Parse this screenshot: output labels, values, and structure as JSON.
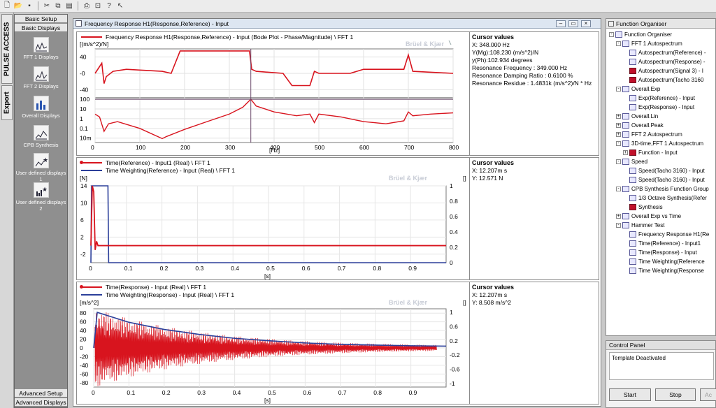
{
  "toolbar": {
    "icons": [
      "new-icon",
      "open-icon",
      "save-icon",
      "cut-icon",
      "copy-icon",
      "paste-icon",
      "print-icon",
      "print-preview-icon",
      "help-icon",
      "context-help-icon"
    ]
  },
  "vtabs": {
    "pulse": "PULSE ACCESS",
    "export": "Export"
  },
  "left": {
    "basic_setup": "Basic Setup",
    "basic_displays": "Basic Displays",
    "items": [
      {
        "label": "FFT 1 Displays",
        "icon": "fft-display-icon"
      },
      {
        "label": "FFT 2 Displays",
        "icon": "fft-display-icon"
      },
      {
        "label": "Overall Displays",
        "icon": "bar-chart-icon"
      },
      {
        "label": "CPB Synthesis",
        "icon": "cpb-icon"
      },
      {
        "label": "User defined displays 1",
        "icon": "star-chart-icon"
      },
      {
        "label": "User defined displays 2",
        "icon": "star-bars-icon"
      }
    ],
    "advanced_setup": "Advanced Setup",
    "advanced_displays": "Advanced Displays"
  },
  "window": {
    "title": "Frequency Response H1(Response,Reference) - Input"
  },
  "panel1": {
    "legend": "Frequency Response H1(Response,Reference) - Input (Bode Plot - Phase/Magnitude) \\ FFT 1",
    "unit": "[(m/s^2)/N]",
    "watermark": "Brüel & Kjær",
    "xunit": "[Hz]",
    "cursor_title": "Cursor values",
    "cursor": [
      "X: 348.000 Hz",
      "Y(Mg):108.230 (m/s^2)/N",
      "y(Ph):102.934 degrees",
      "Resonance Frequency : 349.000 Hz",
      "Resonance Damping Ratio : 0.6100 %",
      "Resonance Residue : 1.4831k (m/s^2)/N * Hz"
    ]
  },
  "panel2": {
    "legend1": "Time(Reference) - Input1 (Real) \\ FFT 1",
    "legend2": "Time Weighting(Reference) - Input (Real) \\ FFT 1",
    "unit": "[N]",
    "runit": "[]",
    "watermark": "Brüel & Kjær",
    "xunit": "[s]",
    "cursor_title": "Cursor values",
    "cursor": [
      "X: 12.207m s",
      "Y: 12.571 N"
    ]
  },
  "panel3": {
    "legend1": "Time(Response) - Input (Real) \\ FFT 1",
    "legend2": "Time Weighting(Response) - Input (Real) \\ FFT 1",
    "unit": "[m/s^2]",
    "runit": "[]",
    "watermark": "Brüel & Kjær",
    "xunit": "[s]",
    "cursor_title": "Cursor values",
    "cursor": [
      "X: 12.207m s",
      "Y: 8.508 m/s^2"
    ]
  },
  "organiser": {
    "title": "Function Organiser",
    "rows": [
      {
        "lvl": 0,
        "exp": "-",
        "icon": "tree",
        "text": "Function Organiser"
      },
      {
        "lvl": 1,
        "exp": "-",
        "icon": "tree",
        "text": "FFT 1.Autospectrum"
      },
      {
        "lvl": 2,
        "exp": "",
        "icon": "doc",
        "text": "Autospectrum(Reference) -"
      },
      {
        "lvl": 2,
        "exp": "",
        "icon": "doc",
        "text": "Autospectrum(Response) -"
      },
      {
        "lvl": 2,
        "exp": "",
        "icon": "red",
        "text": "Autospectrum(Signal 3) - I"
      },
      {
        "lvl": 2,
        "exp": "",
        "icon": "red",
        "text": "Autospectrum(Tacho 3160"
      },
      {
        "lvl": 1,
        "exp": "-",
        "icon": "tree",
        "text": "Overall.Exp"
      },
      {
        "lvl": 2,
        "exp": "",
        "icon": "doc",
        "text": "Exp(Reference) - Input"
      },
      {
        "lvl": 2,
        "exp": "",
        "icon": "doc",
        "text": "Exp(Response) - Input"
      },
      {
        "lvl": 1,
        "exp": "+",
        "icon": "tree",
        "text": "Overall.Lin"
      },
      {
        "lvl": 1,
        "exp": "+",
        "icon": "tree",
        "text": "Overall.Peak"
      },
      {
        "lvl": 1,
        "exp": "+",
        "icon": "tree",
        "text": "FFT 2.Autospectrum"
      },
      {
        "lvl": 1,
        "exp": "-",
        "icon": "tree",
        "text": "3D-time,FFT 1.Autospectrum"
      },
      {
        "lvl": 2,
        "exp": "+",
        "icon": "red",
        "text": "Function - Input"
      },
      {
        "lvl": 1,
        "exp": "-",
        "icon": "tree",
        "text": "Speed"
      },
      {
        "lvl": 2,
        "exp": "",
        "icon": "doc",
        "text": "Speed(Tacho 3160) - Input"
      },
      {
        "lvl": 2,
        "exp": "",
        "icon": "doc",
        "text": "Speed(Tacho 3160) - Input"
      },
      {
        "lvl": 1,
        "exp": "-",
        "icon": "tree",
        "text": "CPB Synthesis Function Group"
      },
      {
        "lvl": 2,
        "exp": "",
        "icon": "doc",
        "text": "1/3 Octave Synthesis(Refer"
      },
      {
        "lvl": 2,
        "exp": "",
        "icon": "red",
        "text": "Synthesis"
      },
      {
        "lvl": 1,
        "exp": "+",
        "icon": "tree",
        "text": "Overall Exp vs Time"
      },
      {
        "lvl": 1,
        "exp": "-",
        "icon": "tree",
        "text": "Hammer Test"
      },
      {
        "lvl": 2,
        "exp": "",
        "icon": "doc",
        "text": "Frequency Response H1(Re"
      },
      {
        "lvl": 2,
        "exp": "",
        "icon": "doc",
        "text": "Time(Reference) - Input1"
      },
      {
        "lvl": 2,
        "exp": "",
        "icon": "doc",
        "text": "Time(Response) - Input"
      },
      {
        "lvl": 2,
        "exp": "",
        "icon": "doc",
        "text": "Time Weighting(Reference"
      },
      {
        "lvl": 2,
        "exp": "",
        "icon": "doc",
        "text": "Time Weighting(Response"
      }
    ]
  },
  "control": {
    "title": "Control Panel",
    "status": "Template Deactivated",
    "start": "Start",
    "stop": "Stop",
    "third": "Ac"
  },
  "chart_data": [
    {
      "type": "line",
      "title": "Frequency Response H1(Response,Reference) - Input (Bode Plot - Phase/Magnitude) \\ FFT 1",
      "xlabel": "[Hz]",
      "ylabel": "[(m/s^2)/N]",
      "x_ticks": [
        0,
        100,
        200,
        300,
        400,
        500,
        600,
        700,
        800
      ],
      "phase_ticks": [
        "40",
        "-0",
        "-40"
      ],
      "mag_ticks": [
        "100",
        "10",
        "1",
        "0.1",
        "10m"
      ],
      "series": [
        {
          "name": "Phase",
          "x": [
            0,
            15,
            20,
            25,
            40,
            70,
            100,
            150,
            170,
            190,
            210,
            300,
            345,
            350,
            360,
            420,
            440,
            480,
            490,
            500,
            570,
            600,
            690,
            700,
            710,
            800
          ],
          "y": [
            0,
            25,
            -25,
            -8,
            5,
            10,
            8,
            5,
            0,
            55,
            55,
            55,
            55,
            10,
            5,
            0,
            -30,
            -30,
            5,
            0,
            0,
            10,
            10,
            45,
            5,
            0
          ]
        },
        {
          "name": "Magnitude",
          "x": [
            0,
            10,
            20,
            30,
            50,
            100,
            150,
            160,
            200,
            250,
            300,
            330,
            348,
            360,
            400,
            450,
            480,
            490,
            500,
            550,
            600,
            650,
            690,
            700,
            710,
            750,
            800
          ],
          "y": [
            3,
            1.5,
            0.05,
            0.3,
            0.5,
            0.1,
            0.009,
            0.015,
            0.08,
            0.5,
            3,
            15,
            100,
            20,
            5,
            2,
            3,
            0.4,
            3,
            1.5,
            0.5,
            0.3,
            0.6,
            5,
            2,
            3,
            4
          ]
        }
      ],
      "cursor_x": 348
    },
    {
      "type": "line",
      "title": "Time(Reference) / Time Weighting(Reference)",
      "xlabel": "[s]",
      "ylabel": "[N]",
      "x_ticks": [
        0,
        0.1,
        0.2,
        0.3,
        0.4,
        0.5,
        0.6,
        0.7,
        0.8,
        0.9
      ],
      "y_ticks": [
        14,
        10,
        6,
        2,
        -2
      ],
      "y2_ticks": [
        1,
        0.8,
        0.6,
        0.4,
        0.2,
        0
      ],
      "series": [
        {
          "name": "Time(Reference) - Input1 (Real) \\ FFT 1",
          "x": [
            0,
            0.004,
            0.008,
            0.012,
            0.016,
            0.02,
            0.03,
            1
          ],
          "y": [
            0,
            14,
            12.6,
            -1,
            1,
            0,
            0,
            0
          ]
        },
        {
          "name": "Time Weighting(Reference) - Input (Real) \\ FFT 1",
          "x": [
            0,
            0.002,
            0.048,
            0.05,
            1
          ],
          "y": [
            0,
            1,
            1,
            0,
            0
          ]
        }
      ]
    },
    {
      "type": "line",
      "title": "Time(Response) / Time Weighting(Response)",
      "xlabel": "[s]",
      "ylabel": "[m/s^2]",
      "x_ticks": [
        0,
        0.1,
        0.2,
        0.3,
        0.4,
        0.5,
        0.6,
        0.7,
        0.8,
        0.9
      ],
      "y_ticks": [
        80,
        60,
        40,
        20,
        0,
        -20,
        -40,
        -60,
        -80
      ],
      "y2_ticks": [
        1,
        0.6,
        0.2,
        -0.2,
        -0.6,
        -1
      ],
      "series": [
        {
          "name": "Time(Response) - Input (Real) \\ FFT 1",
          "envelope_peak": 90,
          "decay": "exponential"
        },
        {
          "name": "Time Weighting(Response) - Input (Real) \\ FFT 1",
          "x": [
            0,
            0.01,
            0.1,
            0.2,
            0.3,
            0.4,
            0.5,
            0.6,
            0.7,
            0.8,
            0.9,
            1
          ],
          "y": [
            0,
            1,
            0.72,
            0.52,
            0.38,
            0.27,
            0.2,
            0.14,
            0.1,
            0.08,
            0.06,
            0.05
          ]
        }
      ]
    }
  ]
}
